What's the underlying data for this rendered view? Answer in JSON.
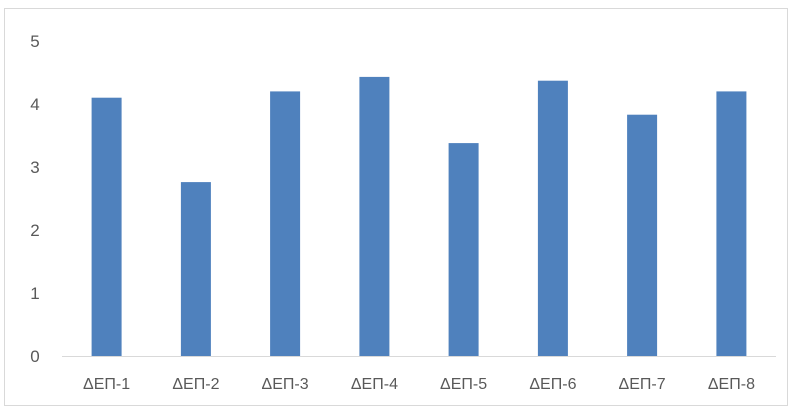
{
  "chart_data": {
    "type": "bar",
    "title": "",
    "xlabel": "",
    "ylabel": "",
    "categories": [
      "ΔΕΠ-1",
      "ΔΕΠ-2",
      "ΔΕΠ-3",
      "ΔΕΠ-4",
      "ΔΕΠ-5",
      "ΔΕΠ-6",
      "ΔΕΠ-7",
      "ΔΕΠ-8"
    ],
    "values": [
      4.1,
      2.76,
      4.2,
      4.43,
      3.38,
      4.37,
      3.83,
      4.2
    ],
    "ylim": [
      0,
      5
    ],
    "yticks": [
      "0",
      "1",
      "2",
      "3",
      "4",
      "5"
    ],
    "grid": false,
    "legend": "none",
    "bar_color": "#4f81bd",
    "axis_color": "#d9d9d9"
  }
}
